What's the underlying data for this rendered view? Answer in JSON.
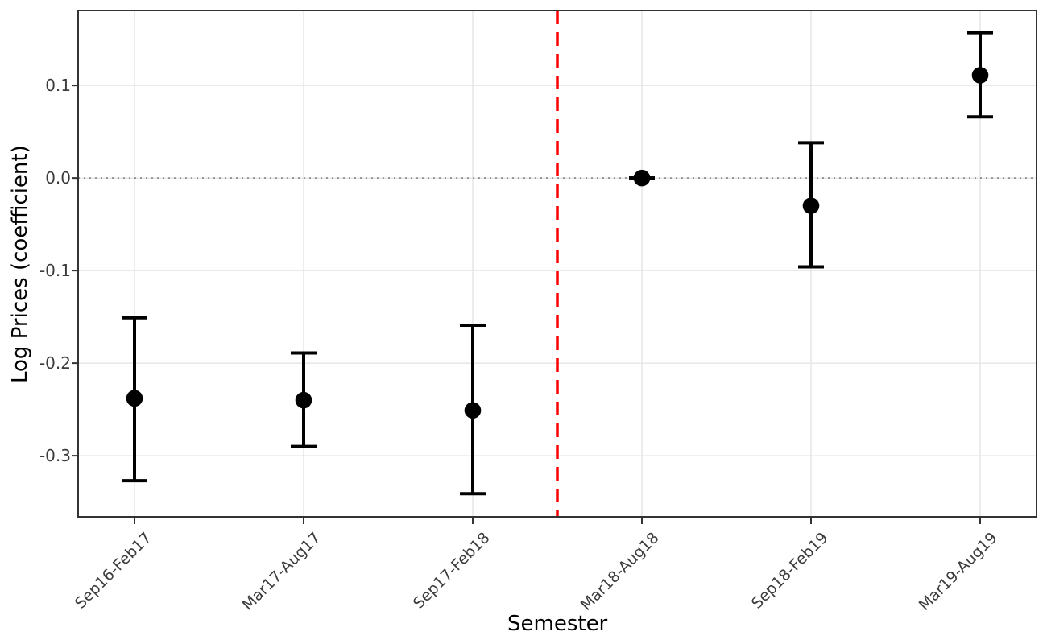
{
  "chart_data": {
    "type": "scatter",
    "subtype": "coefficient-plot-with-error-bars",
    "title": "",
    "xlabel": "Semester",
    "ylabel": "Log Prices (coefficient)",
    "categories": [
      "Sep16-Feb17",
      "Mar17-Aug17",
      "Sep17-Feb18",
      "Mar18-Aug18",
      "Sep18-Feb19",
      "Mar19-Aug19"
    ],
    "series": [
      {
        "name": "Log price coefficient",
        "values": [
          -0.238,
          -0.24,
          -0.251,
          0.0,
          -0.03,
          0.111
        ],
        "ci_low": [
          -0.327,
          -0.29,
          -0.341,
          0.0,
          -0.096,
          0.066
        ],
        "ci_high": [
          -0.151,
          -0.189,
          -0.159,
          0.0,
          0.038,
          0.157
        ]
      }
    ],
    "ylim": [
      -0.366,
      0.181
    ],
    "yticks": [
      0.1,
      0.0,
      -0.1,
      -0.2,
      -0.3
    ],
    "ytick_labels": [
      "0.1",
      "0.0",
      "-0.1",
      "-0.2",
      "-0.3"
    ],
    "grid": true,
    "legend": "none",
    "zero_line": {
      "y": 0.0,
      "style": "dotted"
    },
    "reference_line": {
      "orientation": "vertical",
      "x_between_categories": [
        "Sep17-Feb18",
        "Mar18-Aug18"
      ],
      "style": "dashed"
    }
  },
  "colors": {
    "point": "#000000",
    "errorbar": "#000000",
    "reference_line": "#fe0000",
    "zero_line": "#8c8c8c",
    "gridline": "#e6e6e6",
    "panel_border": "#333333",
    "tick_mark": "#333333",
    "tick_label": "#3c3c3c",
    "axis_title": "#000000",
    "background": "#ffffff"
  }
}
